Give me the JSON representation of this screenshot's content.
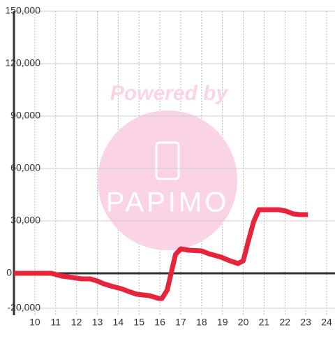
{
  "chart_data": {
    "type": "line",
    "watermark": {
      "top": "Powered by",
      "logo": "PAPIMO"
    },
    "x": [
      9,
      10.8,
      11.3,
      11.8,
      12.25,
      12.65,
      13.0,
      13.3,
      13.75,
      14.15,
      14.5,
      14.9,
      15.5,
      15.95,
      16.1,
      16.35,
      16.75,
      17.0,
      17.4,
      18.0,
      18.35,
      18.95,
      19.35,
      19.75,
      20.0,
      20.25,
      20.5,
      20.75,
      21.7,
      22.05,
      22.4,
      22.7,
      23.1
    ],
    "series": [
      {
        "color": "#e8233c",
        "values": [
          0,
          0,
          -1600,
          -2400,
          -3200,
          -3200,
          -4400,
          -6000,
          -7600,
          -8800,
          -10400,
          -12000,
          -12800,
          -14400,
          -14400,
          -9600,
          10800,
          14000,
          13200,
          12800,
          11200,
          9200,
          7200,
          5600,
          7200,
          18800,
          29600,
          36400,
          36400,
          35600,
          34000,
          33600,
          33600
        ]
      }
    ],
    "xlim": [
      9,
      24.4
    ],
    "xticks": [
      10,
      11,
      12,
      13,
      14,
      15,
      16,
      17,
      18,
      19,
      20,
      21,
      22,
      23,
      24
    ],
    "ylim": [
      -24000,
      150000
    ],
    "yticks": [
      {
        "value": -20000,
        "label": "-20,000"
      },
      0,
      {
        "value": 30000,
        "label": "30,000"
      },
      {
        "value": 60000,
        "label": "60,000"
      },
      {
        "value": 90000,
        "label": "90,000"
      },
      {
        "value": 120000,
        "label": "120,000"
      },
      {
        "value": 150000,
        "label": "150,000"
      }
    ],
    "grid": true
  }
}
